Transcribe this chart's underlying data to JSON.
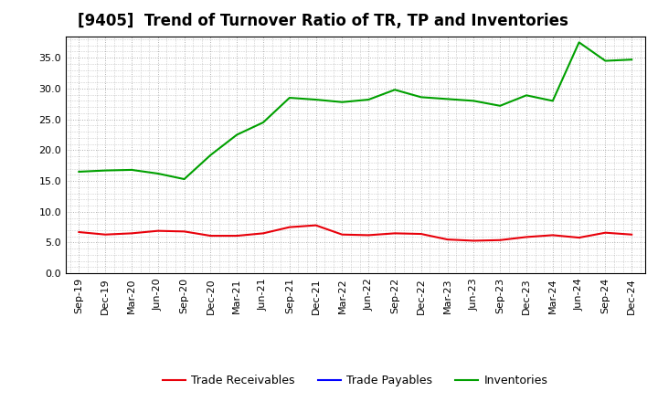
{
  "title": "[9405]  Trend of Turnover Ratio of TR, TP and Inventories",
  "x_labels": [
    "Sep-19",
    "Dec-19",
    "Mar-20",
    "Jun-20",
    "Sep-20",
    "Dec-20",
    "Mar-21",
    "Jun-21",
    "Sep-21",
    "Dec-21",
    "Mar-22",
    "Jun-22",
    "Sep-22",
    "Dec-22",
    "Mar-23",
    "Jun-23",
    "Sep-23",
    "Dec-23",
    "Mar-24",
    "Jun-24",
    "Sep-24",
    "Dec-24"
  ],
  "trade_receivables": [
    6.7,
    6.3,
    6.5,
    6.9,
    6.8,
    6.1,
    6.1,
    6.5,
    7.5,
    7.8,
    6.3,
    6.2,
    6.5,
    6.4,
    5.5,
    5.3,
    5.4,
    5.9,
    6.2,
    5.8,
    6.6,
    6.3
  ],
  "inventories": [
    16.5,
    16.7,
    16.8,
    16.2,
    15.3,
    19.2,
    22.5,
    24.5,
    28.5,
    28.2,
    27.8,
    28.2,
    29.8,
    28.6,
    28.3,
    28.0,
    27.2,
    28.9,
    28.0,
    37.5,
    34.5,
    34.7
  ],
  "tr_color": "#e8000a",
  "tp_color": "#0000ff",
  "inv_color": "#00a000",
  "ylim": [
    0,
    38.5
  ],
  "yticks": [
    0.0,
    5.0,
    10.0,
    15.0,
    20.0,
    25.0,
    30.0,
    35.0
  ],
  "bg_color": "#ffffff",
  "plot_bg_color": "#ffffff",
  "grid_color": "#999999",
  "title_fontsize": 12,
  "label_fontsize": 8.5,
  "tick_fontsize": 8,
  "legend_labels": [
    "Trade Receivables",
    "Trade Payables",
    "Inventories"
  ]
}
